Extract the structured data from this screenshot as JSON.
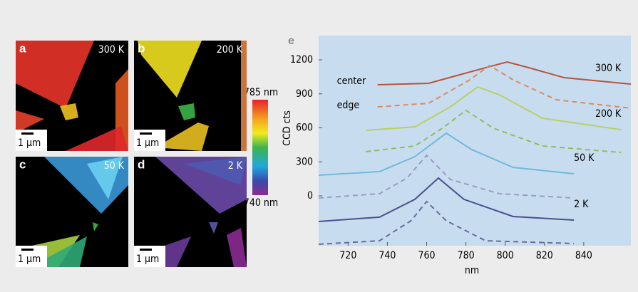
{
  "panels": [
    {
      "label": "a",
      "temperature": "300 K",
      "scale": "1 µm"
    },
    {
      "label": "b",
      "temperature": "200 K",
      "scale": "1 µm"
    },
    {
      "label": "c",
      "temperature": "50 K",
      "scale": "1 µm"
    },
    {
      "label": "d",
      "temperature": "2 K",
      "scale": "1 µm"
    }
  ],
  "colorbar": {
    "max": "785 nm",
    "min": "740 nm"
  },
  "chart_data": {
    "type": "line",
    "title": "e",
    "x_label": "nm",
    "y_label": "CCD cts",
    "xlim": [
      705,
      864
    ],
    "ylim": [
      -440,
      1414
    ],
    "xticks": [
      720,
      740,
      760,
      780,
      800,
      820,
      840
    ],
    "yticks": [
      0,
      300,
      600,
      900,
      1200
    ],
    "background": "#c8dcef",
    "annotations": [
      "center",
      "edge"
    ],
    "series": [
      {
        "name": "300 K",
        "color": "#b5553e",
        "linestyle": "solid",
        "x": [
          735,
          761,
          790,
          801,
          812,
          830,
          864
        ],
        "values": [
          980,
          993,
          1131,
          1181,
          1131,
          1043,
          986
        ]
      },
      {
        "color": "#d98a5f",
        "linestyle": "dashed",
        "x": [
          735,
          761,
          782,
          792,
          804,
          826,
          864
        ],
        "values": [
          785,
          817,
          1024,
          1150,
          1024,
          848,
          773
        ]
      },
      {
        "name": "200 K",
        "color": "#b9cf62",
        "linestyle": "solid",
        "x": [
          729,
          754,
          772,
          786,
          797,
          819,
          859
        ],
        "values": [
          578,
          609,
          785,
          961,
          892,
          685,
          584
        ]
      },
      {
        "color": "#8cbf5a",
        "linestyle": "dashed",
        "x": [
          729,
          754,
          768,
          780,
          794,
          819,
          859
        ],
        "values": [
          390,
          440,
          597,
          754,
          597,
          440,
          383
        ]
      },
      {
        "name": "50 K",
        "color": "#6fb9de",
        "linestyle": "solid",
        "x": [
          705,
          736,
          754,
          770,
          783,
          804,
          835
        ],
        "values": [
          182,
          214,
          346,
          553,
          408,
          251,
          195
        ]
      },
      {
        "color": "#9a9cc4",
        "linestyle": "dashed",
        "x": [
          705,
          736,
          750,
          760,
          772,
          797,
          835
        ],
        "values": [
          -19,
          19,
          157,
          358,
          145,
          19,
          -19
        ]
      },
      {
        "name": "2 K",
        "color": "#4a4f8f",
        "linestyle": "solid",
        "x": [
          705,
          736,
          754,
          766,
          779,
          804,
          835
        ],
        "values": [
          -226,
          -188,
          -31,
          157,
          -31,
          -182,
          -214
        ]
      },
      {
        "color": "#6a6aa0",
        "linestyle": "dashed",
        "x": [
          705,
          736,
          752,
          760,
          770,
          790,
          835
        ],
        "values": [
          -427,
          -396,
          -220,
          -50,
          -220,
          -396,
          -421
        ]
      }
    ]
  }
}
